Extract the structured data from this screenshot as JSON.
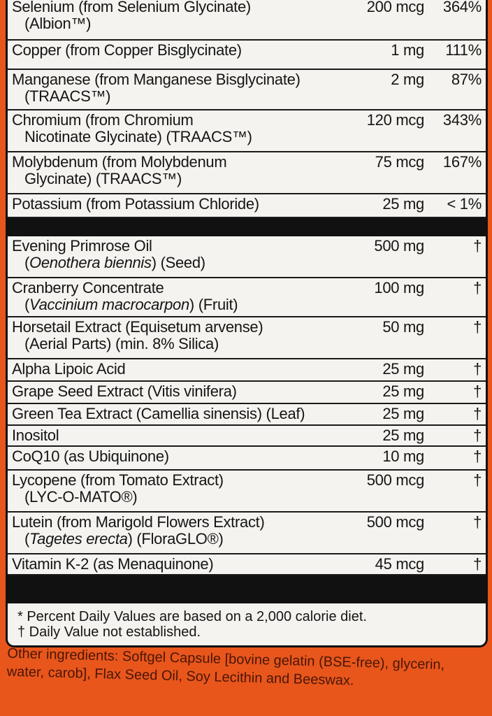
{
  "minerals": [
    {
      "name": "Selenium (from Selenium Glycinate)",
      "sub": "(Albion™)",
      "amount": "200 mcg",
      "dv": "364%",
      "h": 62
    },
    {
      "name": "Copper (from Copper Bisglycinate)",
      "sub": "",
      "amount": "1 mg",
      "dv": "111%",
      "h": 42
    },
    {
      "name": "Manganese (from Manganese Bisglycinate)",
      "sub": "(TRAACS™)",
      "amount": "2 mg",
      "dv": "87%",
      "h": 58
    },
    {
      "name": "Chromium (from Chromium",
      "sub": "Nicotinate Glycinate) (TRAACS™)",
      "amount": "120 mcg",
      "dv": "343%",
      "h": 60
    },
    {
      "name": "Molybdenum (from Molybdenum",
      "sub": "Glycinate) (TRAACS™)",
      "amount": "75 mcg",
      "dv": "167%",
      "h": 60
    },
    {
      "name": "Potassium (from Potassium Chloride)",
      "sub": "",
      "amount": "25 mg",
      "dv": "< 1%",
      "h": 34
    }
  ],
  "others": [
    {
      "name": "Evening Primrose Oil",
      "sub_italic": "Oenothera biennis",
      "sub_rest": " (Seed)",
      "amount": "500 mg",
      "dv": "†",
      "h": 60
    },
    {
      "name": "Cranberry Concentrate",
      "sub_italic": "Vaccinium macrocarpon",
      "sub_rest": " (Fruit)",
      "amount": "100 mg",
      "dv": "†",
      "h": 56
    },
    {
      "name": "Horsetail Extract (Equisetum arvense)",
      "sub_italic": "",
      "sub_rest": "(Aerial Parts) (min. 8% Silica)",
      "amount": "50 mg",
      "dv": "†",
      "h": 60
    },
    {
      "name": "Alpha Lipoic Acid",
      "amount": "25 mg",
      "dv": "†",
      "h": 32
    },
    {
      "name": "Grape Seed Extract (Vitis vinifera)",
      "amount": "25 mg",
      "dv": "†",
      "h": 32
    },
    {
      "name": "Green Tea Extract (Camellia sinensis) (Leaf)",
      "amount": "25 mg",
      "dv": "†",
      "h": 31
    },
    {
      "name": "Inositol",
      "amount": "25 mg",
      "dv": "†",
      "h": 30
    },
    {
      "name": "CoQ10 (as Ubiquinone)",
      "amount": "10 mg",
      "dv": "†",
      "h": 34
    },
    {
      "name": "Lycopene (from Tomato Extract)",
      "sub_italic": "",
      "sub_rest": "(LYC-O-MATO®)",
      "amount": "500 mcg",
      "dv": "†",
      "h": 60
    },
    {
      "name": "Lutein (from Marigold Flowers Extract)",
      "sub_italic": "Tagetes erecta",
      "sub_rest": " (FloraGLO®)",
      "amount": "500 mcg",
      "dv": "†",
      "h": 60
    },
    {
      "name": "Vitamin K-2 (as Menaquinone)",
      "amount": "45 mcg",
      "dv": "†",
      "h": 30
    }
  ],
  "footnotes": [
    "* Percent Daily Values are based on a 2,000 calorie diet.",
    "† Daily Value not established."
  ],
  "other_ingredients": "Other ingredients: Softgel Capsule [bovine gelatin (BSE-free), glycerin, water, carob], Flax Seed Oil, Soy Lecithin and Beeswax.",
  "colors": {
    "background": "#e8561c",
    "panel": "#f4f3ef",
    "rule": "#111111"
  }
}
